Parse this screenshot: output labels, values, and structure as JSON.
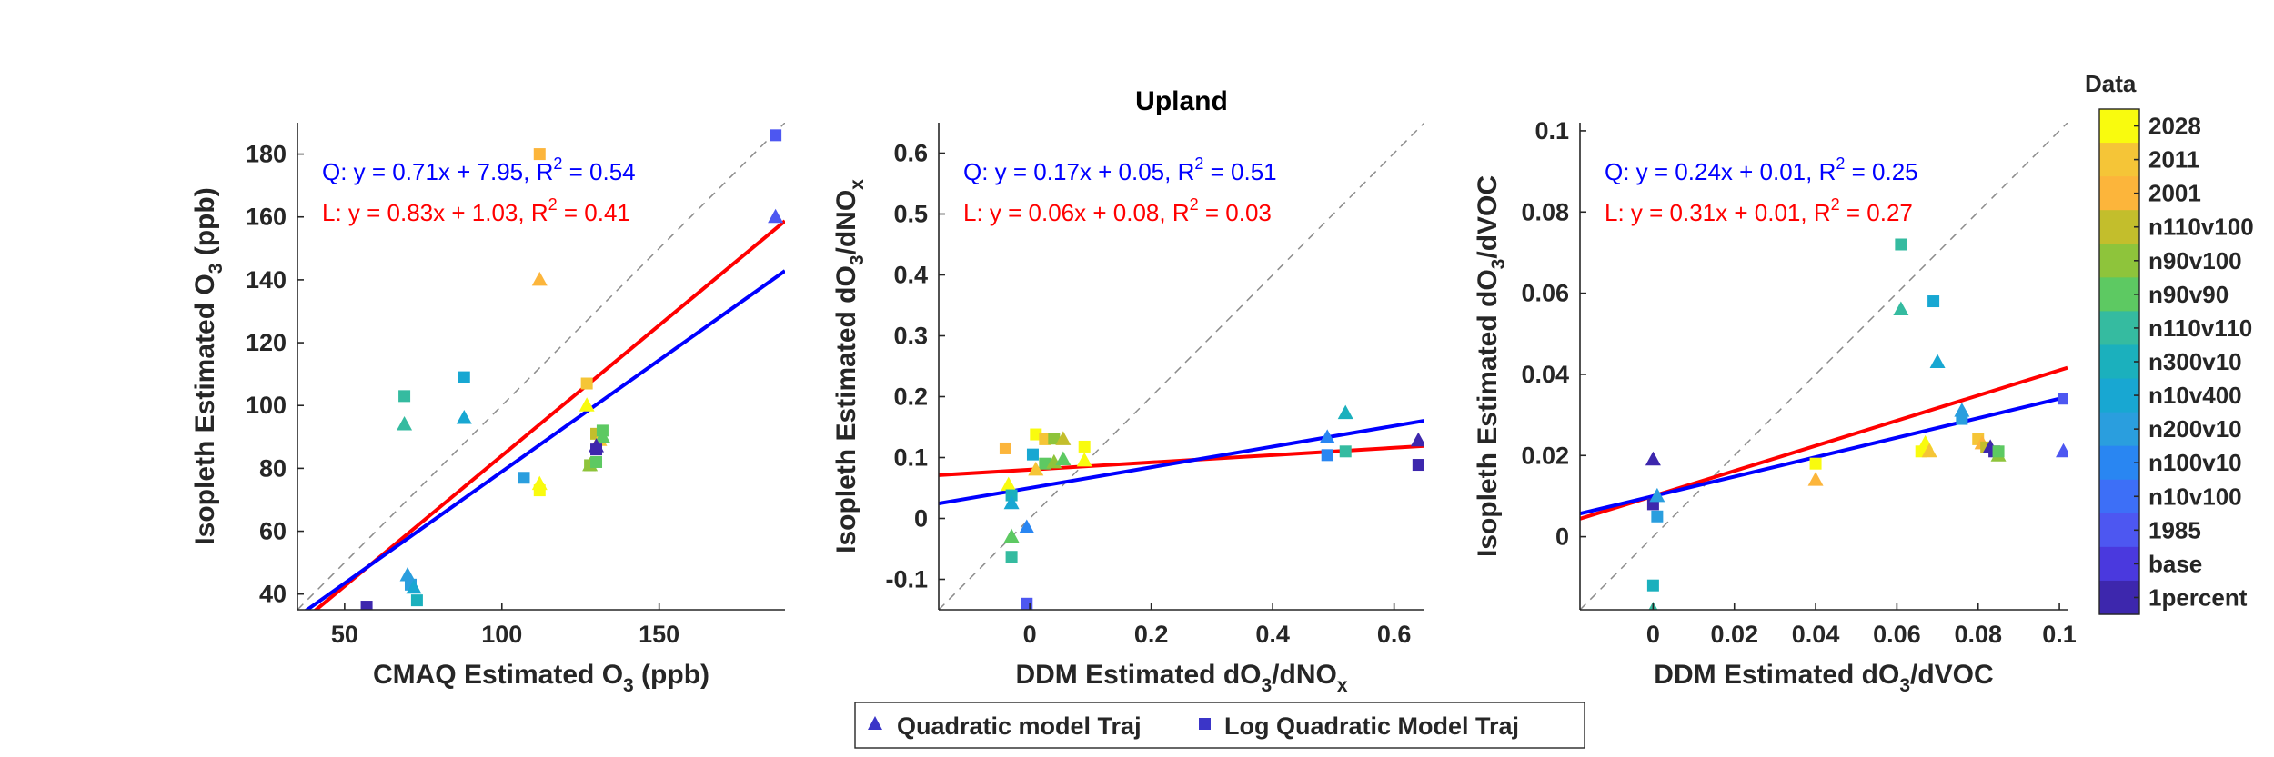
{
  "chart_data": [
    {
      "type": "scatter",
      "title": "",
      "xlabel": "CMAQ Estimated O3 (ppb)",
      "xlabel_main": "CMAQ Estimated O",
      "xlabel_sub": "3",
      "xlabel_tail": " (ppb)",
      "ylabel_main": "Isopleth Estimated O",
      "ylabel_sub": "3",
      "ylabel_tail": " (ppb)",
      "xlim": [
        35,
        190
      ],
      "ylim": [
        35,
        190
      ],
      "xticks": [
        50,
        100,
        150
      ],
      "xtick_labels": [
        "50",
        "100",
        "150"
      ],
      "yticks": [
        40,
        60,
        80,
        100,
        120,
        140,
        160,
        180
      ],
      "ytick_labels": [
        "40",
        "60",
        "80",
        "100",
        "120",
        "140",
        "160",
        "180"
      ],
      "fits": [
        {
          "name": "Q",
          "slope": 0.71,
          "intercept": 7.95,
          "r2": 0.54,
          "color": "#0000ff",
          "text_pre": "Q: y = 0.71x + 7.95, R",
          "text_sup": "2",
          "text_post": " = 0.54"
        },
        {
          "name": "L",
          "slope": 0.83,
          "intercept": 1.03,
          "r2": 0.41,
          "color": "#ff0000",
          "text_pre": "L: y = 0.83x + 1.03, R",
          "text_sup": "2",
          "text_post": " = 0.41"
        }
      ],
      "points": [
        {
          "x": 187,
          "y": 160,
          "m": "tri",
          "c": 11
        },
        {
          "x": 187,
          "y": 186,
          "m": "sq",
          "c": 11
        },
        {
          "x": 112,
          "y": 180,
          "m": "sq",
          "c": 1
        },
        {
          "x": 112,
          "y": 140,
          "m": "tri",
          "c": 1
        },
        {
          "x": 69,
          "y": 103,
          "m": "sq",
          "c": 6
        },
        {
          "x": 69,
          "y": 94,
          "m": "tri",
          "c": 6
        },
        {
          "x": 88,
          "y": 109,
          "m": "sq",
          "c": 8
        },
        {
          "x": 88,
          "y": 96,
          "m": "tri",
          "c": 8
        },
        {
          "x": 127,
          "y": 107,
          "m": "sq",
          "c": 2
        },
        {
          "x": 127,
          "y": 100,
          "m": "tri",
          "c": 0
        },
        {
          "x": 130,
          "y": 91,
          "m": "sq",
          "c": 3
        },
        {
          "x": 131,
          "y": 89,
          "m": "tri",
          "c": 2
        },
        {
          "x": 132,
          "y": 92,
          "m": "sq",
          "c": 5
        },
        {
          "x": 132,
          "y": 90,
          "m": "tri",
          "c": 5
        },
        {
          "x": 130,
          "y": 86,
          "m": "sq",
          "c": 12
        },
        {
          "x": 130,
          "y": 87,
          "m": "tri",
          "c": 12
        },
        {
          "x": 128,
          "y": 81,
          "m": "sq",
          "c": 4
        },
        {
          "x": 128,
          "y": 81,
          "m": "tri",
          "c": 4
        },
        {
          "x": 130,
          "y": 82,
          "m": "sq",
          "c": 5
        },
        {
          "x": 112,
          "y": 75,
          "m": "tri",
          "c": 0
        },
        {
          "x": 112,
          "y": 73,
          "m": "sq",
          "c": 0
        },
        {
          "x": 107,
          "y": 77,
          "m": "sq",
          "c": 9
        },
        {
          "x": 70,
          "y": 46,
          "m": "tri",
          "c": 9
        },
        {
          "x": 71,
          "y": 43,
          "m": "sq",
          "c": 9
        },
        {
          "x": 72,
          "y": 42,
          "m": "tri",
          "c": 8
        },
        {
          "x": 73,
          "y": 38,
          "m": "sq",
          "c": 7
        },
        {
          "x": 57,
          "y": 36,
          "m": "sq",
          "c": 12
        }
      ]
    },
    {
      "type": "scatter",
      "title": "Upland",
      "xlabel": "DDM Estimated dO3/dNOx",
      "xlabel_main": "DDM Estimated dO",
      "xlabel_sub": "3",
      "xlabel_tail": "/dNO",
      "xlabel_sub2": "x",
      "ylabel_main": "Isopleth Estimated dO",
      "ylabel_sub": "3",
      "ylabel_tail": "/dNO",
      "ylabel_sub2": "x",
      "xlim": [
        -0.15,
        0.65
      ],
      "ylim": [
        -0.15,
        0.65
      ],
      "xticks": [
        0,
        0.2,
        0.4,
        0.6
      ],
      "xtick_labels": [
        "0",
        "0.2",
        "0.4",
        "0.6"
      ],
      "yticks": [
        -0.1,
        0,
        0.1,
        0.2,
        0.3,
        0.4,
        0.5,
        0.6
      ],
      "ytick_labels": [
        "-0.1",
        "0",
        "0.1",
        "0.2",
        "0.3",
        "0.4",
        "0.5",
        "0.6"
      ],
      "fits": [
        {
          "name": "Q",
          "slope": 0.17,
          "intercept": 0.05,
          "r2": 0.51,
          "color": "#0000ff",
          "text_pre": "Q: y = 0.17x + 0.05, R",
          "text_sup": "2",
          "text_post": " = 0.51"
        },
        {
          "name": "L",
          "slope": 0.06,
          "intercept": 0.08,
          "r2": 0.03,
          "color": "#ff0000",
          "text_pre": "L: y = 0.06x + 0.08, R",
          "text_sup": "2",
          "text_post": " = 0.03"
        }
      ],
      "points": [
        {
          "x": 0.64,
          "y": 0.128,
          "m": "tri",
          "c": 12
        },
        {
          "x": 0.64,
          "y": 0.088,
          "m": "sq",
          "c": 12
        },
        {
          "x": 0.52,
          "y": 0.173,
          "m": "tri",
          "c": 7
        },
        {
          "x": 0.52,
          "y": 0.11,
          "m": "sq",
          "c": 6
        },
        {
          "x": 0.49,
          "y": 0.133,
          "m": "tri",
          "c": 10
        },
        {
          "x": 0.49,
          "y": 0.104,
          "m": "sq",
          "c": 10
        },
        {
          "x": -0.04,
          "y": 0.115,
          "m": "sq",
          "c": 1
        },
        {
          "x": 0.01,
          "y": 0.138,
          "m": "sq",
          "c": 0
        },
        {
          "x": 0.025,
          "y": 0.13,
          "m": "sq",
          "c": 2
        },
        {
          "x": 0.04,
          "y": 0.131,
          "m": "sq",
          "c": 4
        },
        {
          "x": 0.055,
          "y": 0.13,
          "m": "tri",
          "c": 3
        },
        {
          "x": 0.09,
          "y": 0.118,
          "m": "sq",
          "c": 0
        },
        {
          "x": 0.005,
          "y": 0.105,
          "m": "sq",
          "c": 8
        },
        {
          "x": 0.025,
          "y": 0.09,
          "m": "sq",
          "c": 5
        },
        {
          "x": 0.04,
          "y": 0.092,
          "m": "tri",
          "c": 4
        },
        {
          "x": 0.055,
          "y": 0.097,
          "m": "tri",
          "c": 5
        },
        {
          "x": 0.09,
          "y": 0.095,
          "m": "tri",
          "c": 0
        },
        {
          "x": 0.01,
          "y": 0.08,
          "m": "tri",
          "c": 2
        },
        {
          "x": -0.035,
          "y": 0.055,
          "m": "tri",
          "c": 0
        },
        {
          "x": -0.03,
          "y": 0.038,
          "m": "sq",
          "c": 7
        },
        {
          "x": -0.03,
          "y": 0.025,
          "m": "tri",
          "c": 8
        },
        {
          "x": -0.03,
          "y": -0.03,
          "m": "tri",
          "c": 5
        },
        {
          "x": -0.03,
          "y": -0.063,
          "m": "sq",
          "c": 6
        },
        {
          "x": -0.005,
          "y": -0.015,
          "m": "tri",
          "c": 10
        },
        {
          "x": -0.005,
          "y": -0.14,
          "m": "sq",
          "c": 11
        }
      ]
    },
    {
      "type": "scatter",
      "title": "",
      "xlabel": "DDM Estimated dO3/dVOC",
      "xlabel_main": "DDM Estimated dO",
      "xlabel_sub": "3",
      "xlabel_tail": "/dVOC",
      "ylabel_main": "Isopleth Estimated dO",
      "ylabel_sub": "3",
      "ylabel_tail": "/dVOC",
      "xlim": [
        -0.018,
        0.102
      ],
      "ylim": [
        -0.018,
        0.102
      ],
      "xticks": [
        0,
        0.02,
        0.04,
        0.06,
        0.08,
        0.1
      ],
      "xtick_labels": [
        "0",
        "0.02",
        "0.04",
        "0.06",
        "0.08",
        "0.1"
      ],
      "yticks": [
        0,
        0.02,
        0.04,
        0.06,
        0.08,
        0.1
      ],
      "ytick_labels": [
        "0",
        "0.02",
        "0.04",
        "0.06",
        "0.08",
        "0.1"
      ],
      "fits": [
        {
          "name": "Q",
          "slope": 0.24,
          "intercept": 0.01,
          "r2": 0.25,
          "color": "#0000ff",
          "text_pre": "Q: y = 0.24x + 0.01, R",
          "text_sup": "2",
          "text_post": " = 0.25"
        },
        {
          "name": "L",
          "slope": 0.31,
          "intercept": 0.01,
          "r2": 0.27,
          "color": "#ff0000",
          "text_pre": "L: y = 0.31x + 0.01, R",
          "text_sup": "2",
          "text_post": " = 0.27"
        }
      ],
      "points": [
        {
          "x": 0.101,
          "y": 0.034,
          "m": "sq",
          "c": 11
        },
        {
          "x": 0.101,
          "y": 0.021,
          "m": "tri",
          "c": 11
        },
        {
          "x": 0.061,
          "y": 0.072,
          "m": "sq",
          "c": 6
        },
        {
          "x": 0.061,
          "y": 0.056,
          "m": "tri",
          "c": 6
        },
        {
          "x": 0.069,
          "y": 0.058,
          "m": "sq",
          "c": 8
        },
        {
          "x": 0.07,
          "y": 0.043,
          "m": "tri",
          "c": 8
        },
        {
          "x": 0.076,
          "y": 0.031,
          "m": "tri",
          "c": 9
        },
        {
          "x": 0.076,
          "y": 0.029,
          "m": "sq",
          "c": 9
        },
        {
          "x": 0.08,
          "y": 0.024,
          "m": "sq",
          "c": 2
        },
        {
          "x": 0.081,
          "y": 0.023,
          "m": "tri",
          "c": 1
        },
        {
          "x": 0.082,
          "y": 0.022,
          "m": "sq",
          "c": 3
        },
        {
          "x": 0.083,
          "y": 0.022,
          "m": "tri",
          "c": 12
        },
        {
          "x": 0.084,
          "y": 0.021,
          "m": "sq",
          "c": 12
        },
        {
          "x": 0.085,
          "y": 0.02,
          "m": "tri",
          "c": 4
        },
        {
          "x": 0.085,
          "y": 0.021,
          "m": "sq",
          "c": 5
        },
        {
          "x": 0.066,
          "y": 0.021,
          "m": "sq",
          "c": 0
        },
        {
          "x": 0.067,
          "y": 0.023,
          "m": "tri",
          "c": 0
        },
        {
          "x": 0.068,
          "y": 0.021,
          "m": "tri",
          "c": 2
        },
        {
          "x": 0.04,
          "y": 0.014,
          "m": "tri",
          "c": 1
        },
        {
          "x": 0.04,
          "y": 0.018,
          "m": "sq",
          "c": 0
        },
        {
          "x": 0.0,
          "y": 0.019,
          "m": "tri",
          "c": 12
        },
        {
          "x": 0.0,
          "y": 0.008,
          "m": "sq",
          "c": 12
        },
        {
          "x": 0.001,
          "y": 0.01,
          "m": "tri",
          "c": 9
        },
        {
          "x": 0.001,
          "y": 0.005,
          "m": "sq",
          "c": 9
        },
        {
          "x": 0.0,
          "y": -0.012,
          "m": "sq",
          "c": 7
        },
        {
          "x": 0.0,
          "y": -0.018,
          "m": "tri",
          "c": 6
        }
      ]
    }
  ],
  "colorbar": {
    "title": "Data",
    "labels": [
      "2028",
      "2011",
      "2001",
      "n110v100",
      "n90v100",
      "n90v90",
      "n110v110",
      "n300v10",
      "n10v400",
      "n200v10",
      "n100v10",
      "n10v100",
      "1985",
      "base",
      "1percent"
    ],
    "colors": [
      "#f9fb0e",
      "#f5c537",
      "#fcb53b",
      "#c3be2c",
      "#8ec43b",
      "#5dc962",
      "#35bba0",
      "#1bb0bd",
      "#18a7d2",
      "#2a9ede",
      "#2986f2",
      "#3d6ff7",
      "#4d57f1",
      "#4a39de",
      "#3d27ad"
    ]
  },
  "legend": {
    "items": [
      {
        "label": "Quadratic model Traj",
        "marker": "triangle",
        "color": "#3b35c8"
      },
      {
        "label": "Log Quadratic Model Traj",
        "marker": "square",
        "color": "#3b35c8"
      }
    ]
  },
  "palette": [
    "#f9fb0e",
    "#fcb53b",
    "#f5c537",
    "#c3be2c",
    "#8ec43b",
    "#5dc962",
    "#35bba0",
    "#1bb0bd",
    "#18a7d2",
    "#2a9ede",
    "#2986f2",
    "#4d57f1",
    "#3d27ad"
  ]
}
